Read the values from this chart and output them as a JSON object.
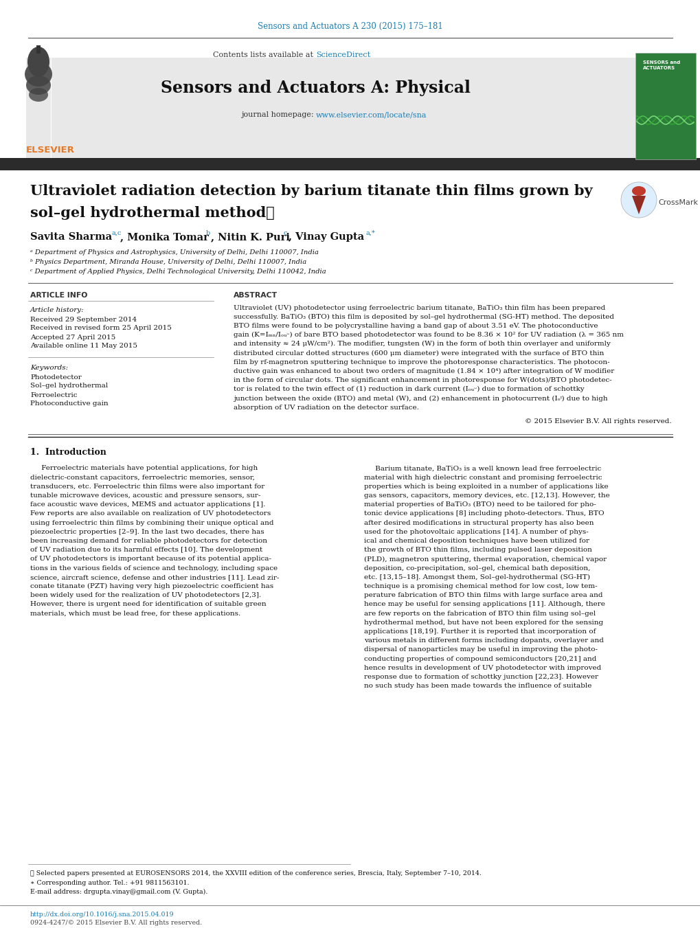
{
  "bg_color": "#ffffff",
  "top_journal_ref": "Sensors and Actuators A 230 (2015) 175–181",
  "top_journal_ref_color": "#1a7db5",
  "header_bg": "#e8e8e8",
  "sciencedirect_color": "#1a7db5",
  "journal_title": "Sensors and Actuators A: Physical",
  "journal_url": "www.elsevier.com/locate/sna",
  "journal_url_color": "#1a7db5",
  "elsevier_color": "#e87722",
  "dark_bar_color": "#2b2b2b",
  "article_title_line1": "Ultraviolet radiation detection by barium titanate thin films grown by",
  "article_title_line2": "sol–gel hydrothermal method★",
  "affil_a": "ᵃ Department of Physics and Astrophysics, University of Delhi, Delhi 110007, India",
  "affil_b": "ᵇ Physics Department, Miranda House, University of Delhi, Delhi 110007, India",
  "affil_c": "ᶜ Department of Applied Physics, Delhi Technological University, Delhi 110042, India",
  "article_info_header": "ARTICLE INFO",
  "abstract_header": "ABSTRACT",
  "article_history_label": "Article history:",
  "received1": "Received 29 September 2014",
  "received2": "Received in revised form 25 April 2015",
  "accepted": "Accepted 27 April 2015",
  "available": "Available online 11 May 2015",
  "keywords_label": "Keywords:",
  "kw1": "Photodetector",
  "kw2": "Sol–gel hydrothermal",
  "kw3": "Ferroelectric",
  "kw4": "Photoconductive gain",
  "copyright": "© 2015 Elsevier B.V. All rights reserved.",
  "footer_line1": "★ Selected papers presented at EUROSENSORS 2014, the XXVIII edition of the conference series, Brescia, Italy, September 7–10, 2014.",
  "footer_line2": "∗ Corresponding author. Tel.: +91 9811563101.",
  "footer_line3": "E-mail address: drgupta.vinay@gmail.com (V. Gupta).",
  "footer_doi": "http://dx.doi.org/10.1016/j.sna.2015.04.019",
  "footer_issn": "0924-4247/© 2015 Elsevier B.V. All rights reserved."
}
